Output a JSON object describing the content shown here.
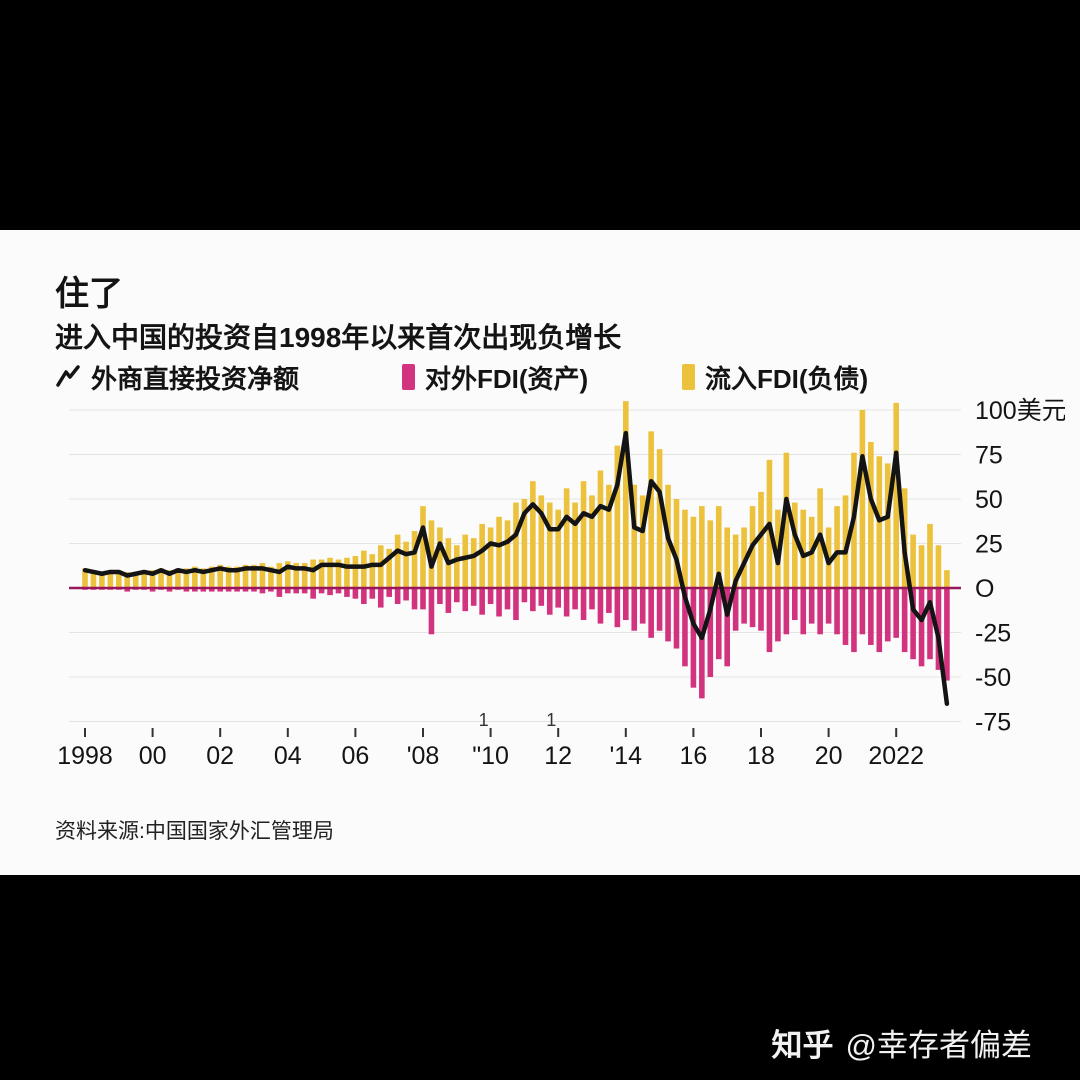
{
  "panel": {
    "title": "住了",
    "subtitle": "进入中国的投资自1998年以来首次出现负增长",
    "source": "资料来源:中国国家外汇管理局"
  },
  "watermark": {
    "brand": "知乎",
    "handle": "@幸存者偏差"
  },
  "legend": {
    "items": [
      {
        "label": "外商直接投资净额",
        "swatch": "line",
        "color": "#141414"
      },
      {
        "label": "对外FDI(资产)",
        "swatch": "bar",
        "color": "#d2337f"
      },
      {
        "label": "流入FDI(负债)",
        "swatch": "bar",
        "color": "#ecc13b"
      }
    ]
  },
  "chart_data": {
    "type": "bar",
    "title": "进入中国的投资自1998年以来首次出现负增长",
    "x_range": {
      "start": "1998Q1",
      "end": "2023Q3",
      "frequency": "quarterly"
    },
    "x_tick_labels": [
      "1998",
      "00",
      "02",
      "04",
      "06",
      "'08",
      "\"10",
      "12",
      "'14",
      "16",
      "18",
      "20",
      "2022"
    ],
    "y_ticks": [
      100,
      75,
      50,
      25,
      0,
      -25,
      -50,
      -75
    ],
    "y_tick_labels": [
      "100美元",
      "75",
      "50",
      "25",
      "O",
      "-25",
      "-50",
      "-75"
    ],
    "ylim": [
      -75,
      100
    ],
    "grid": true,
    "legend_position": "top",
    "style": {
      "grid_color": "#e4e4e4",
      "zero_line_color": "#98175c",
      "tick_color": "#333333"
    },
    "stray_marks": [
      {
        "text": "1",
        "tick_index": 6
      },
      {
        "text": "1",
        "tick_index": 7
      }
    ],
    "series": [
      {
        "name": "流入FDI(负债)",
        "kind": "bar",
        "color": "#ecc13b",
        "values": [
          11,
          10,
          9,
          10,
          10,
          9,
          9,
          10,
          10,
          11,
          10,
          11,
          11,
          12,
          11,
          12,
          13,
          12,
          12,
          13,
          13,
          14,
          12,
          14,
          15,
          14,
          14,
          16,
          16,
          17,
          16,
          17,
          18,
          21,
          19,
          24,
          22,
          30,
          26,
          32,
          46,
          38,
          34,
          28,
          24,
          30,
          28,
          36,
          34,
          40,
          38,
          48,
          50,
          60,
          52,
          48,
          44,
          56,
          48,
          60,
          52,
          66,
          58,
          80,
          105,
          58,
          52,
          88,
          78,
          58,
          50,
          44,
          40,
          46,
          38,
          46,
          34,
          30,
          34,
          46,
          54,
          72,
          44,
          76,
          48,
          44,
          40,
          56,
          34,
          46,
          52,
          76,
          100,
          82,
          74,
          70,
          104,
          56,
          30,
          24,
          36,
          24,
          10
        ]
      },
      {
        "name": "对外FDI(资产)",
        "kind": "bar",
        "color": "#d2337f",
        "values": [
          -1,
          -1,
          -1,
          -1,
          -1,
          -2,
          -1,
          -1,
          -2,
          -1,
          -2,
          -1,
          -2,
          -2,
          -2,
          -2,
          -2,
          -2,
          -2,
          -2,
          -2,
          -3,
          -2,
          -5,
          -3,
          -3,
          -3,
          -6,
          -3,
          -4,
          -3,
          -5,
          -6,
          -9,
          -6,
          -11,
          -5,
          -9,
          -7,
          -12,
          -12,
          -26,
          -9,
          -14,
          -8,
          -13,
          -10,
          -15,
          -9,
          -16,
          -12,
          -18,
          -8,
          -13,
          -10,
          -15,
          -11,
          -16,
          -12,
          -18,
          -12,
          -20,
          -14,
          -22,
          -18,
          -24,
          -20,
          -28,
          -24,
          -30,
          -34,
          -44,
          -56,
          -62,
          -50,
          -40,
          -44,
          -24,
          -20,
          -22,
          -24,
          -36,
          -30,
          -26,
          -18,
          -26,
          -20,
          -26,
          -20,
          -26,
          -32,
          -36,
          -26,
          -32,
          -36,
          -30,
          -28,
          -36,
          -40,
          -44,
          -40,
          -46,
          -52
        ]
      },
      {
        "name": "外商直接投资净额",
        "kind": "line",
        "color": "#141414",
        "values": [
          10,
          9,
          8,
          9,
          9,
          7,
          8,
          9,
          8,
          10,
          8,
          10,
          9,
          10,
          9,
          10,
          11,
          10,
          10,
          11,
          11,
          11,
          10,
          9,
          12,
          11,
          11,
          10,
          13,
          13,
          13,
          12,
          12,
          12,
          13,
          13,
          17,
          21,
          19,
          20,
          34,
          12,
          25,
          14,
          16,
          17,
          18,
          21,
          25,
          24,
          26,
          30,
          42,
          47,
          42,
          33,
          33,
          40,
          36,
          42,
          40,
          46,
          44,
          58,
          87,
          34,
          32,
          60,
          54,
          28,
          16,
          -5,
          -20,
          -28,
          -12,
          8,
          -15,
          4,
          14,
          24,
          30,
          36,
          14,
          50,
          30,
          18,
          20,
          30,
          14,
          20,
          20,
          40,
          74,
          50,
          38,
          40,
          76,
          20,
          -12,
          -18,
          -8,
          -28,
          -65
        ]
      }
    ]
  }
}
